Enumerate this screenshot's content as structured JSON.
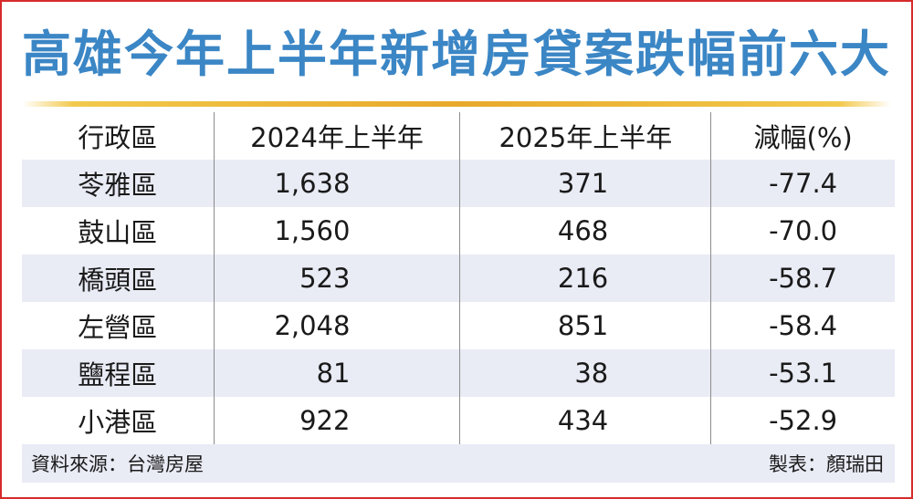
{
  "title": "高雄今年上半年新增房貸案跌幅前六大",
  "table": {
    "headers": [
      "行政區",
      "2024年上半年",
      "2025年上半年",
      "減幅(%)"
    ],
    "rows": [
      [
        "苓雅區",
        "1,638",
        "371",
        "-77.4"
      ],
      [
        "鼓山區",
        "1,560",
        "468",
        "-70.0"
      ],
      [
        "橋頭區",
        "523",
        "216",
        "-58.7"
      ],
      [
        "左營區",
        "2,048",
        "851",
        "-58.4"
      ],
      [
        "鹽程區",
        "81",
        "38",
        "-53.1"
      ],
      [
        "小港區",
        "922",
        "434",
        "-52.9"
      ]
    ]
  },
  "footer": {
    "source": "資料來源：台灣房屋",
    "maker": "製表：顏瑞田"
  },
  "colors": {
    "title": "#3b86c5",
    "border": "#d62b2b",
    "rule": "#e8a92a",
    "row_shade": "#e9ebf5"
  }
}
